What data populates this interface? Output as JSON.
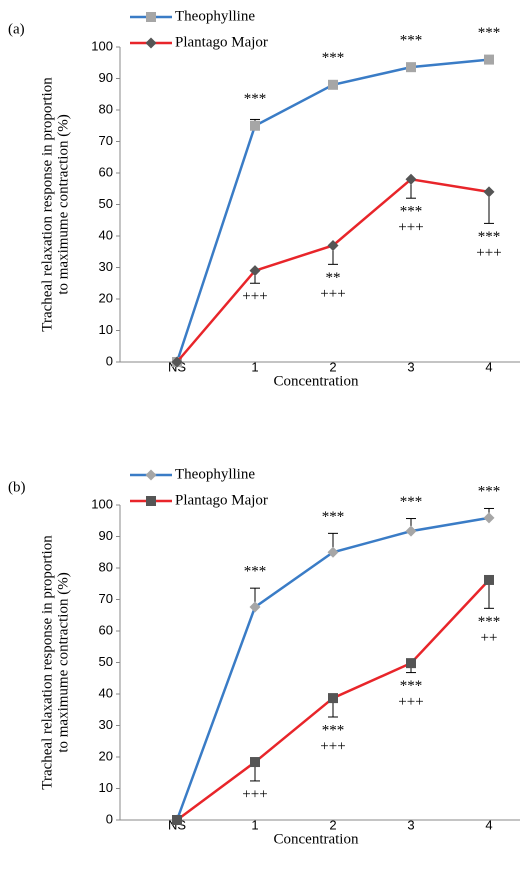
{
  "chart_data": [
    {
      "type": "line",
      "panel_label": "(a)",
      "x_label": "Concentration",
      "y_label": [
        "Tracheal relaxation response in proportion",
        "to maximume contraction (%)"
      ],
      "categories": [
        "NS",
        "1",
        "2",
        "3",
        "4"
      ],
      "ylim": [
        0,
        100
      ],
      "yticks": [
        0,
        10,
        20,
        30,
        40,
        50,
        60,
        70,
        80,
        90,
        100
      ],
      "series": [
        {
          "name": "Theophylline",
          "color": "#3a7cc6",
          "marker": "square",
          "marker_color": "#a6a6a6",
          "values": [
            0,
            75,
            88,
            93.6,
            96
          ],
          "errors": [
            0,
            2,
            1,
            1,
            1
          ],
          "error_direction": "up",
          "annotations": [
            [],
            [
              "***"
            ],
            [
              "***"
            ],
            [
              "***"
            ],
            [
              "***"
            ]
          ]
        },
        {
          "name": "Plantago Major",
          "color": "#e8252a",
          "marker": "diamond",
          "marker_color": "#555555",
          "values": [
            0,
            29,
            37,
            58,
            54
          ],
          "errors": [
            0,
            4,
            6,
            6,
            10
          ],
          "error_direction": "down",
          "annotations": [
            [],
            [
              "+++"
            ],
            [
              "**",
              "+++"
            ],
            [
              "***",
              "+++"
            ],
            [
              "***",
              "+++"
            ]
          ]
        }
      ]
    },
    {
      "type": "line",
      "panel_label": "(b)",
      "x_label": "Concentration",
      "y_label": [
        "Tracheal relaxation response in proportion",
        "to maximume contraction (%)"
      ],
      "categories": [
        "NS",
        "1",
        "2",
        "3",
        "4"
      ],
      "ylim": [
        0,
        100
      ],
      "yticks": [
        0,
        10,
        20,
        30,
        40,
        50,
        60,
        70,
        80,
        90,
        100
      ],
      "series": [
        {
          "name": "Theophylline",
          "color": "#3a7cc6",
          "marker": "diamond",
          "marker_color": "#a6a6a6",
          "values": [
            0,
            67.6,
            85,
            91.7,
            95.9
          ],
          "errors": [
            0,
            6,
            6,
            4,
            3
          ],
          "error_direction": "up",
          "annotations": [
            [],
            [
              "***"
            ],
            [
              "***"
            ],
            [
              "***"
            ],
            [
              "***"
            ]
          ]
        },
        {
          "name": "Plantago Major",
          "color": "#e8252a",
          "marker": "square",
          "marker_color": "#555555",
          "values": [
            0,
            18.4,
            38.7,
            49.8,
            76.2
          ],
          "errors": [
            0,
            6,
            6,
            3,
            9
          ],
          "error_direction": "down",
          "annotations": [
            [],
            [
              "+++"
            ],
            [
              "***",
              "+++"
            ],
            [
              "***",
              "+++"
            ],
            [
              "***",
              "++"
            ]
          ]
        }
      ]
    }
  ]
}
